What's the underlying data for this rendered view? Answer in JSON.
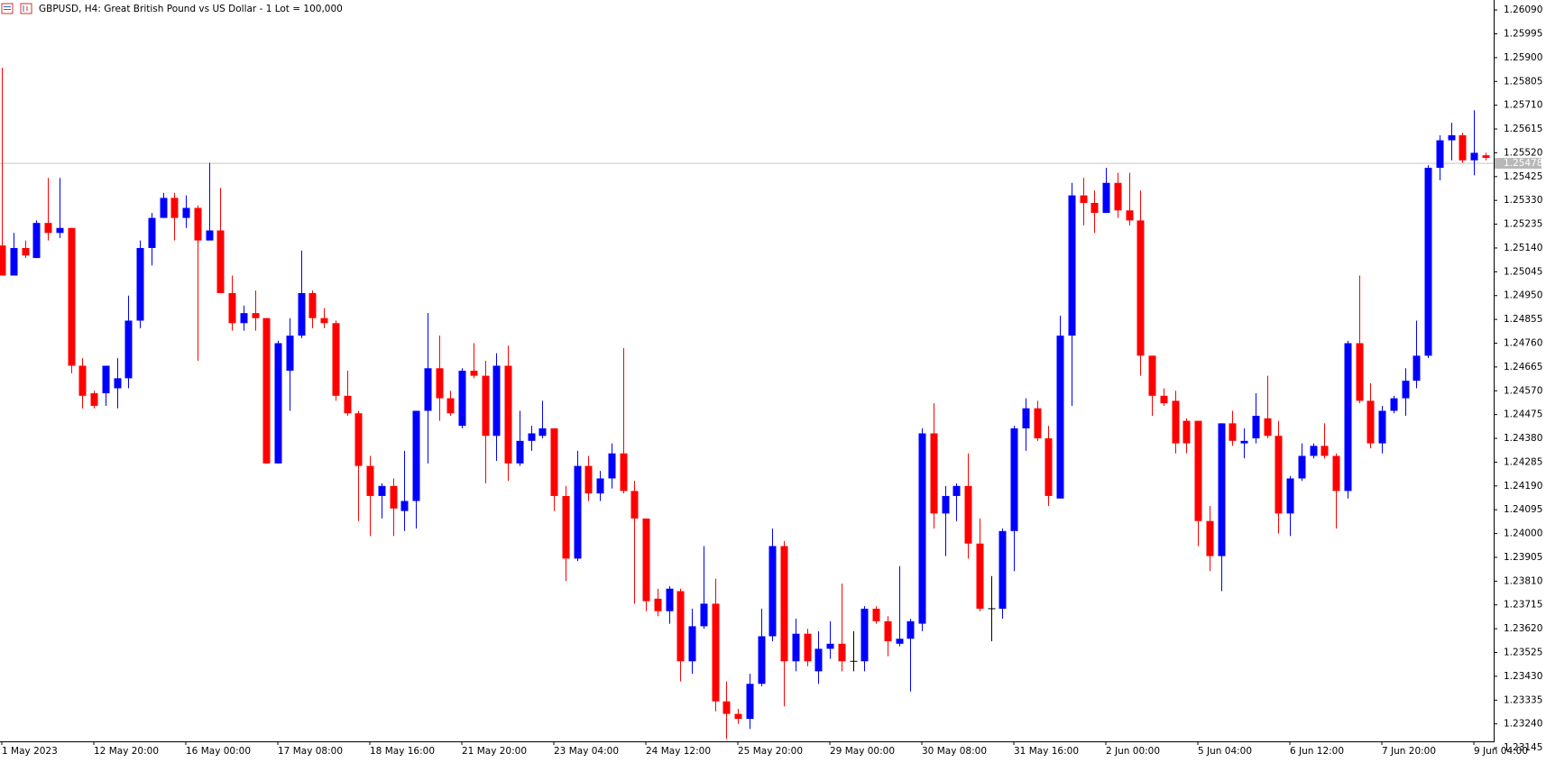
{
  "chart_data": {
    "type": "candlestick",
    "title": "GBPUSD, H4:  Great British Pound vs US Dollar - 1 Lot = 100,000",
    "categories": [
      "1 May 2023",
      null,
      null,
      null,
      null,
      null,
      null,
      null,
      "12 May 20:00",
      null,
      null,
      null,
      null,
      null,
      null,
      null,
      "16 May 00:00",
      null,
      null,
      null,
      null,
      null,
      null,
      null,
      "17 May 08:00",
      null,
      null,
      null,
      null,
      null,
      null,
      null,
      "18 May 16:00",
      null,
      null,
      null,
      null,
      null,
      null,
      null,
      "21 May 20:00",
      null,
      null,
      null,
      null,
      null,
      null,
      null,
      "23 May 04:00",
      null,
      null,
      null,
      null,
      null,
      null,
      null,
      "24 May 12:00",
      null,
      null,
      null,
      null,
      null,
      null,
      null,
      "25 May 20:00",
      null,
      null,
      null,
      null,
      null,
      null,
      null,
      "29 May 00:00",
      null,
      null,
      null,
      null,
      null,
      null,
      null,
      "30 May 08:00",
      null,
      null,
      null,
      null,
      null,
      null,
      null,
      "31 May 16:00",
      null,
      null,
      null,
      null,
      null,
      null,
      null,
      "2 Jun 00:00",
      null,
      null,
      null,
      null,
      null,
      null,
      null,
      "5 Jun 04:00",
      null,
      null,
      null,
      null,
      null,
      null,
      null,
      "6 Jun 12:00",
      null,
      null,
      null,
      null,
      null,
      null,
      null,
      "7 Jun 20:00",
      null,
      null,
      null,
      null,
      null,
      null,
      null,
      "9 Jun 04:00",
      null
    ],
    "open": [
      1.2515,
      1.2503,
      1.2514,
      1.251,
      1.2524,
      1.252,
      1.2522,
      1.2467,
      1.2456,
      1.2456,
      1.2458,
      1.2462,
      1.2485,
      1.2514,
      1.2526,
      1.2534,
      1.2526,
      1.253,
      1.2517,
      1.2521,
      1.2496,
      1.2484,
      1.2488,
      1.2486,
      1.2428,
      1.2465,
      1.2479,
      1.2496,
      1.2486,
      1.2484,
      1.2455,
      1.2448,
      1.2427,
      1.2415,
      1.2419,
      1.2409,
      1.2413,
      1.2449,
      1.2466,
      1.2454,
      1.2443,
      1.2465,
      1.2463,
      1.2439,
      1.2467,
      1.2428,
      1.2437,
      1.2439,
      1.2442,
      1.2415,
      1.239,
      1.2427,
      1.2416,
      1.2422,
      1.2432,
      1.2417,
      1.2406,
      1.2374,
      1.2369,
      1.2377,
      1.2349,
      1.2363,
      1.2372,
      1.2333,
      1.2328,
      1.2326,
      1.234,
      1.2359,
      1.2395,
      1.2349,
      1.236,
      1.2345,
      1.2354,
      1.2356,
      1.2349,
      1.2349,
      1.237,
      1.2365,
      1.2356,
      1.2358,
      1.2364,
      1.244,
      1.2408,
      1.2415,
      1.2419,
      1.2396,
      1.237,
      1.237,
      1.2401,
      1.2442,
      1.245,
      1.2438,
      1.2414,
      1.2479,
      1.2535,
      1.2532,
      1.2528,
      1.254,
      1.2529,
      1.2525,
      1.2471,
      1.2455,
      1.2453,
      1.2445,
      1.2445,
      1.2405,
      1.2391,
      1.2444,
      1.2436,
      1.2438,
      1.2446,
      1.2439,
      1.2408,
      1.2422,
      1.2431,
      1.2435,
      1.2431,
      1.2417,
      1.2476,
      1.2453,
      1.2436,
      1.2449,
      1.2454,
      1.2461,
      1.2471,
      1.2546,
      1.2557,
      1.2559,
      1.2549,
      1.2551
    ],
    "high": [
      1.2586,
      1.252,
      1.2517,
      1.2525,
      1.2542,
      1.2542,
      1.2522,
      1.247,
      1.2457,
      1.2467,
      1.247,
      1.2495,
      1.2517,
      1.2528,
      1.2536,
      1.2536,
      1.2535,
      1.2531,
      1.2548,
      1.2538,
      1.2503,
      1.2491,
      1.2497,
      1.2486,
      1.2477,
      1.2486,
      1.2513,
      1.2497,
      1.249,
      1.2485,
      1.2465,
      1.2449,
      1.2431,
      1.242,
      1.2422,
      1.2433,
      1.2449,
      1.2488,
      1.2479,
      1.2457,
      1.2466,
      1.2476,
      1.2469,
      1.2472,
      1.2475,
      1.2449,
      1.2443,
      1.2453,
      1.2442,
      1.2419,
      1.2433,
      1.2431,
      1.2425,
      1.2436,
      1.2474,
      1.2421,
      1.2406,
      1.2378,
      1.2379,
      1.2378,
      1.237,
      1.2395,
      1.2382,
      1.2341,
      1.233,
      1.2344,
      1.237,
      1.2402,
      1.2397,
      1.2366,
      1.2362,
      1.2361,
      1.2365,
      1.238,
      1.2361,
      1.2371,
      1.2371,
      1.2367,
      1.2387,
      1.2366,
      1.2442,
      1.2452,
      1.2419,
      1.242,
      1.2432,
      1.2406,
      1.2383,
      1.2402,
      1.2443,
      1.2454,
      1.2453,
      1.2443,
      1.2487,
      1.254,
      1.2542,
      1.2537,
      1.2546,
      1.2544,
      1.2544,
      1.2537,
      1.2471,
      1.2458,
      1.2457,
      1.2446,
      1.2445,
      1.2411,
      1.2444,
      1.2449,
      1.2442,
      1.2456,
      1.2463,
      1.2445,
      1.2423,
      1.2436,
      1.2436,
      1.2444,
      1.2432,
      1.2477,
      1.2503,
      1.246,
      1.2451,
      1.2455,
      1.2466,
      1.2485,
      1.2547,
      1.2559,
      1.2564,
      1.256,
      1.2569,
      1.2552
    ],
    "low": [
      1.2503,
      1.2503,
      1.251,
      1.251,
      1.2517,
      1.2518,
      1.2464,
      1.245,
      1.245,
      1.2451,
      1.245,
      1.2458,
      1.2482,
      1.2507,
      1.2526,
      1.2517,
      1.2522,
      1.2469,
      1.2517,
      1.2496,
      1.2481,
      1.2481,
      1.2481,
      1.2428,
      1.2428,
      1.2449,
      1.2478,
      1.2482,
      1.2482,
      1.2453,
      1.2447,
      1.2405,
      1.2399,
      1.2406,
      1.2399,
      1.2401,
      1.2402,
      1.2428,
      1.2445,
      1.2447,
      1.2442,
      1.2462,
      1.242,
      1.2429,
      1.2421,
      1.2427,
      1.2433,
      1.2438,
      1.2409,
      1.2381,
      1.2389,
      1.2413,
      1.2413,
      1.2418,
      1.2416,
      1.2372,
      1.2369,
      1.2367,
      1.2364,
      1.2341,
      1.2344,
      1.2362,
      1.2329,
      1.2318,
      1.2324,
      1.2322,
      1.2339,
      1.2357,
      1.2331,
      1.2345,
      1.2347,
      1.234,
      1.235,
      1.2345,
      1.2345,
      1.2345,
      1.2364,
      1.2351,
      1.2355,
      1.2337,
      1.2361,
      1.2402,
      1.2391,
      1.2405,
      1.239,
      1.2369,
      1.2357,
      1.2366,
      1.2385,
      1.2433,
      1.2437,
      1.2411,
      1.2414,
      1.2451,
      1.2523,
      1.252,
      1.2528,
      1.2526,
      1.2523,
      1.2463,
      1.2447,
      1.2451,
      1.2432,
      1.2432,
      1.2395,
      1.2385,
      1.2377,
      1.2435,
      1.243,
      1.2436,
      1.2438,
      1.24,
      1.2399,
      1.2421,
      1.243,
      1.243,
      1.2402,
      1.2414,
      1.2452,
      1.2434,
      1.2432,
      1.2448,
      1.2447,
      1.2458,
      1.247,
      1.2541,
      1.2549,
      1.2548,
      1.2543,
      1.2549
    ],
    "close": [
      1.2503,
      1.2514,
      1.2511,
      1.2524,
      1.252,
      1.2522,
      1.2467,
      1.2455,
      1.2451,
      1.2467,
      1.2462,
      1.2485,
      1.2514,
      1.2526,
      1.2534,
      1.2526,
      1.253,
      1.2517,
      1.2521,
      1.2496,
      1.2484,
      1.2488,
      1.2486,
      1.2428,
      1.2476,
      1.2479,
      1.2496,
      1.2486,
      1.2484,
      1.2455,
      1.2448,
      1.2427,
      1.2415,
      1.2419,
      1.241,
      1.2413,
      1.2449,
      1.2466,
      1.2454,
      1.2448,
      1.2465,
      1.2463,
      1.2439,
      1.2467,
      1.2428,
      1.2437,
      1.244,
      1.2442,
      1.2415,
      1.239,
      1.2427,
      1.2416,
      1.2422,
      1.2432,
      1.2417,
      1.2406,
      1.2373,
      1.2369,
      1.2378,
      1.2349,
      1.2363,
      1.2372,
      1.2333,
      1.2328,
      1.2326,
      1.234,
      1.2359,
      1.2395,
      1.2349,
      1.236,
      1.2349,
      1.2354,
      1.2356,
      1.2349,
      1.2349,
      1.237,
      1.2365,
      1.2357,
      1.2358,
      1.2365,
      1.244,
      1.2408,
      1.2415,
      1.2419,
      1.2396,
      1.237,
      1.237,
      1.2401,
      1.2442,
      1.245,
      1.2438,
      1.2415,
      1.2479,
      1.2535,
      1.2532,
      1.2528,
      1.254,
      1.2529,
      1.2525,
      1.2471,
      1.2455,
      1.2452,
      1.2436,
      1.2436,
      1.2405,
      1.2391,
      1.2444,
      1.2437,
      1.2437,
      1.2447,
      1.2439,
      1.2408,
      1.2422,
      1.2431,
      1.2435,
      1.2431,
      1.2417,
      1.2476,
      1.2453,
      1.2436,
      1.2449,
      1.2454,
      1.2461,
      1.2471,
      1.2546,
      1.2557,
      1.2559,
      1.2549,
      1.2552,
      1.255
    ],
    "up_color": "#0000ff",
    "down_color": "#ff0000",
    "doji_color": "#000000",
    "current_price": 1.25478,
    "ylim": [
      1.2312,
      1.2613
    ],
    "yticks": [
      {
        "value": 1.2609,
        "label": "1.26090"
      },
      1.25995,
      {
        "value": 1.259,
        "label": "1.25900"
      },
      1.25805,
      {
        "value": 1.2571,
        "label": "1.25710"
      },
      1.25615,
      {
        "value": 1.2552,
        "label": "1.25520"
      },
      1.25425,
      {
        "value": 1.2533,
        "label": "1.25330"
      },
      1.25235,
      {
        "value": 1.2514,
        "label": "1.25140"
      },
      1.25045,
      {
        "value": 1.2495,
        "label": "1.24950"
      },
      1.24855,
      {
        "value": 1.2476,
        "label": "1.24760"
      },
      1.24665,
      {
        "value": 1.2457,
        "label": "1.24570"
      },
      1.24475,
      {
        "value": 1.2438,
        "label": "1.24380"
      },
      1.24285,
      {
        "value": 1.2419,
        "label": "1.24190"
      },
      1.24095,
      {
        "value": 1.24,
        "label": "1.24000"
      },
      1.23905,
      {
        "value": 1.2381,
        "label": "1.23810"
      },
      1.23715,
      {
        "value": 1.2362,
        "label": "1.23620"
      },
      1.23525,
      {
        "value": 1.2343,
        "label": "1.23430"
      },
      1.23335,
      {
        "value": 1.2324,
        "label": "1.23240"
      },
      1.23145
    ],
    "grid": false
  }
}
